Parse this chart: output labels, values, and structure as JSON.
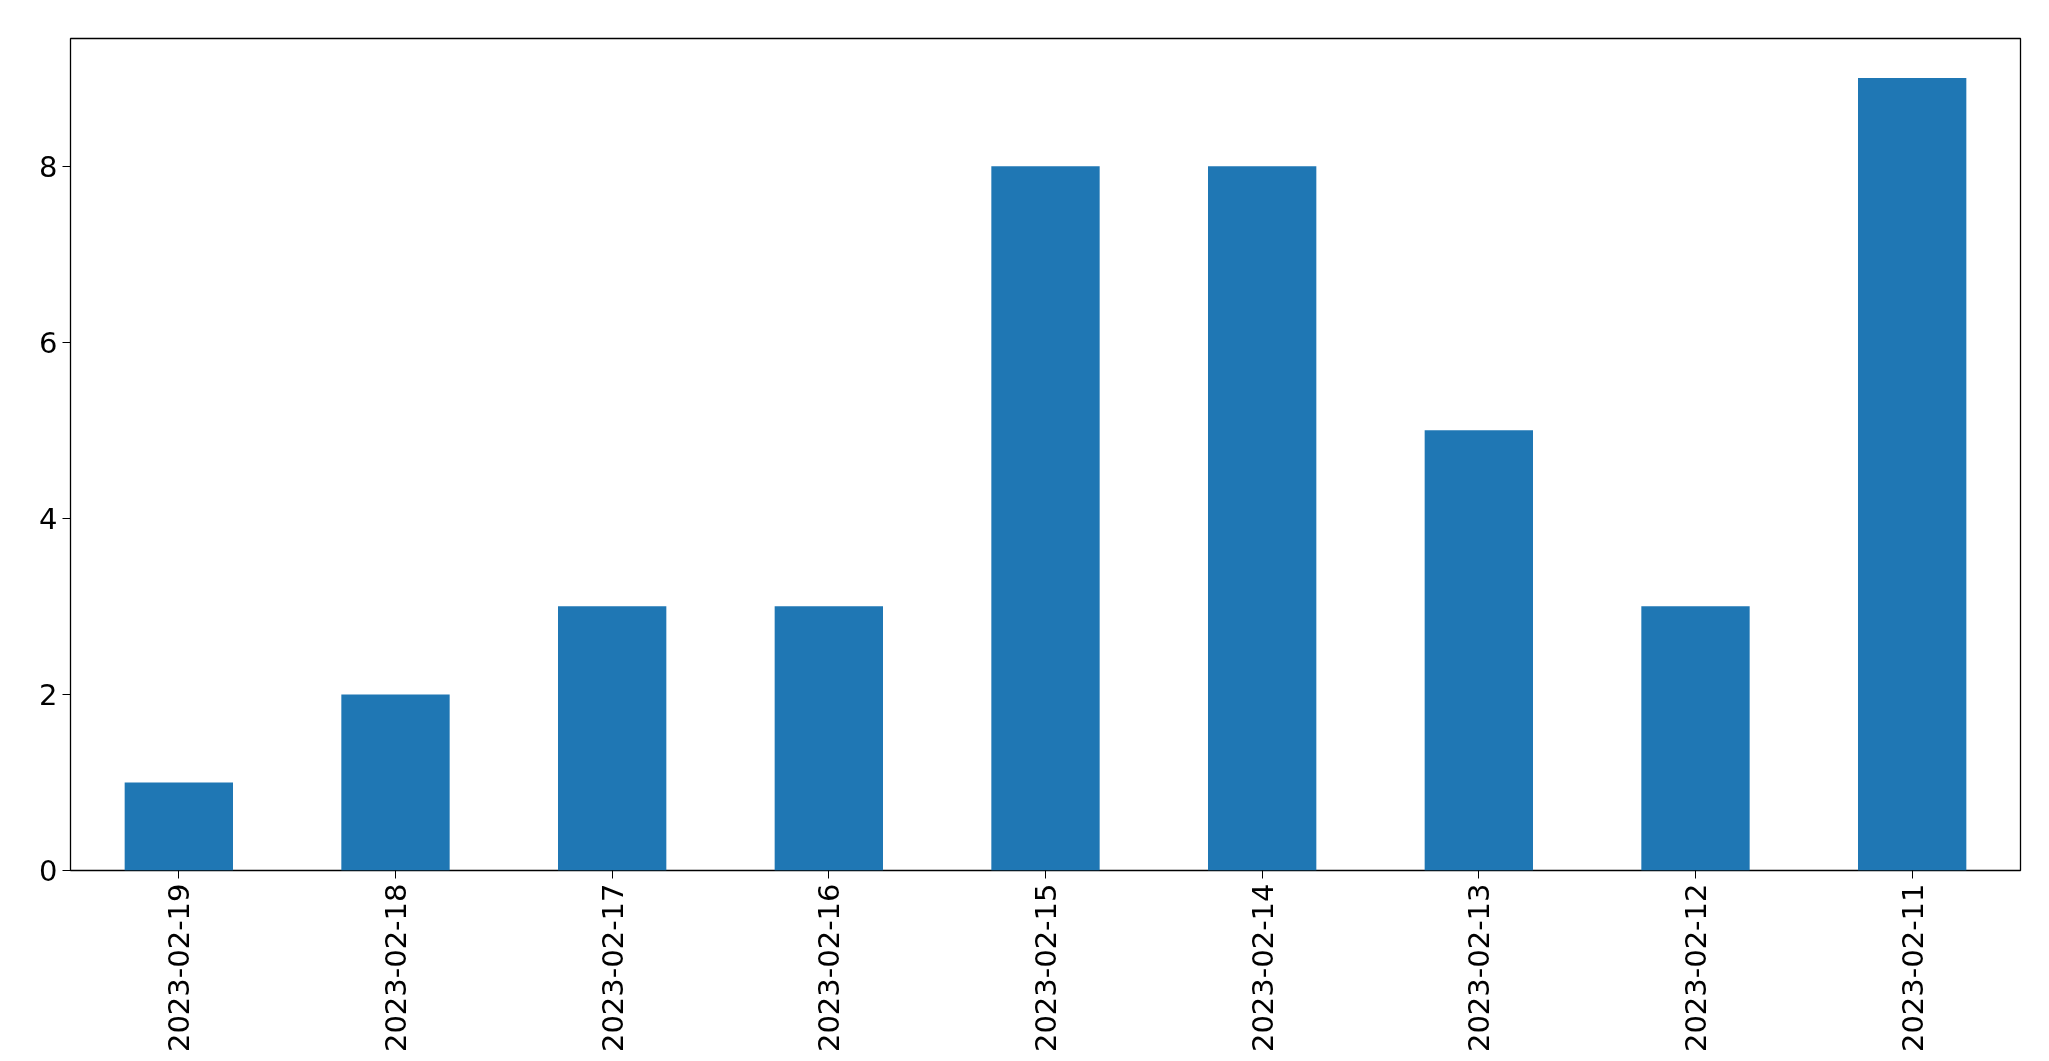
{
  "chart_data": {
    "type": "bar",
    "categories": [
      "2023-02-19",
      "2023-02-18",
      "2023-02-17",
      "2023-02-16",
      "2023-02-15",
      "2023-02-14",
      "2023-02-13",
      "2023-02-12",
      "2023-02-11"
    ],
    "values": [
      1,
      2,
      3,
      3,
      8,
      8,
      5,
      3,
      9
    ],
    "color": "#1f77b4",
    "ylim": [
      0,
      9.45
    ],
    "yticks": [
      0,
      2,
      4,
      6,
      8
    ],
    "grid": false
  }
}
